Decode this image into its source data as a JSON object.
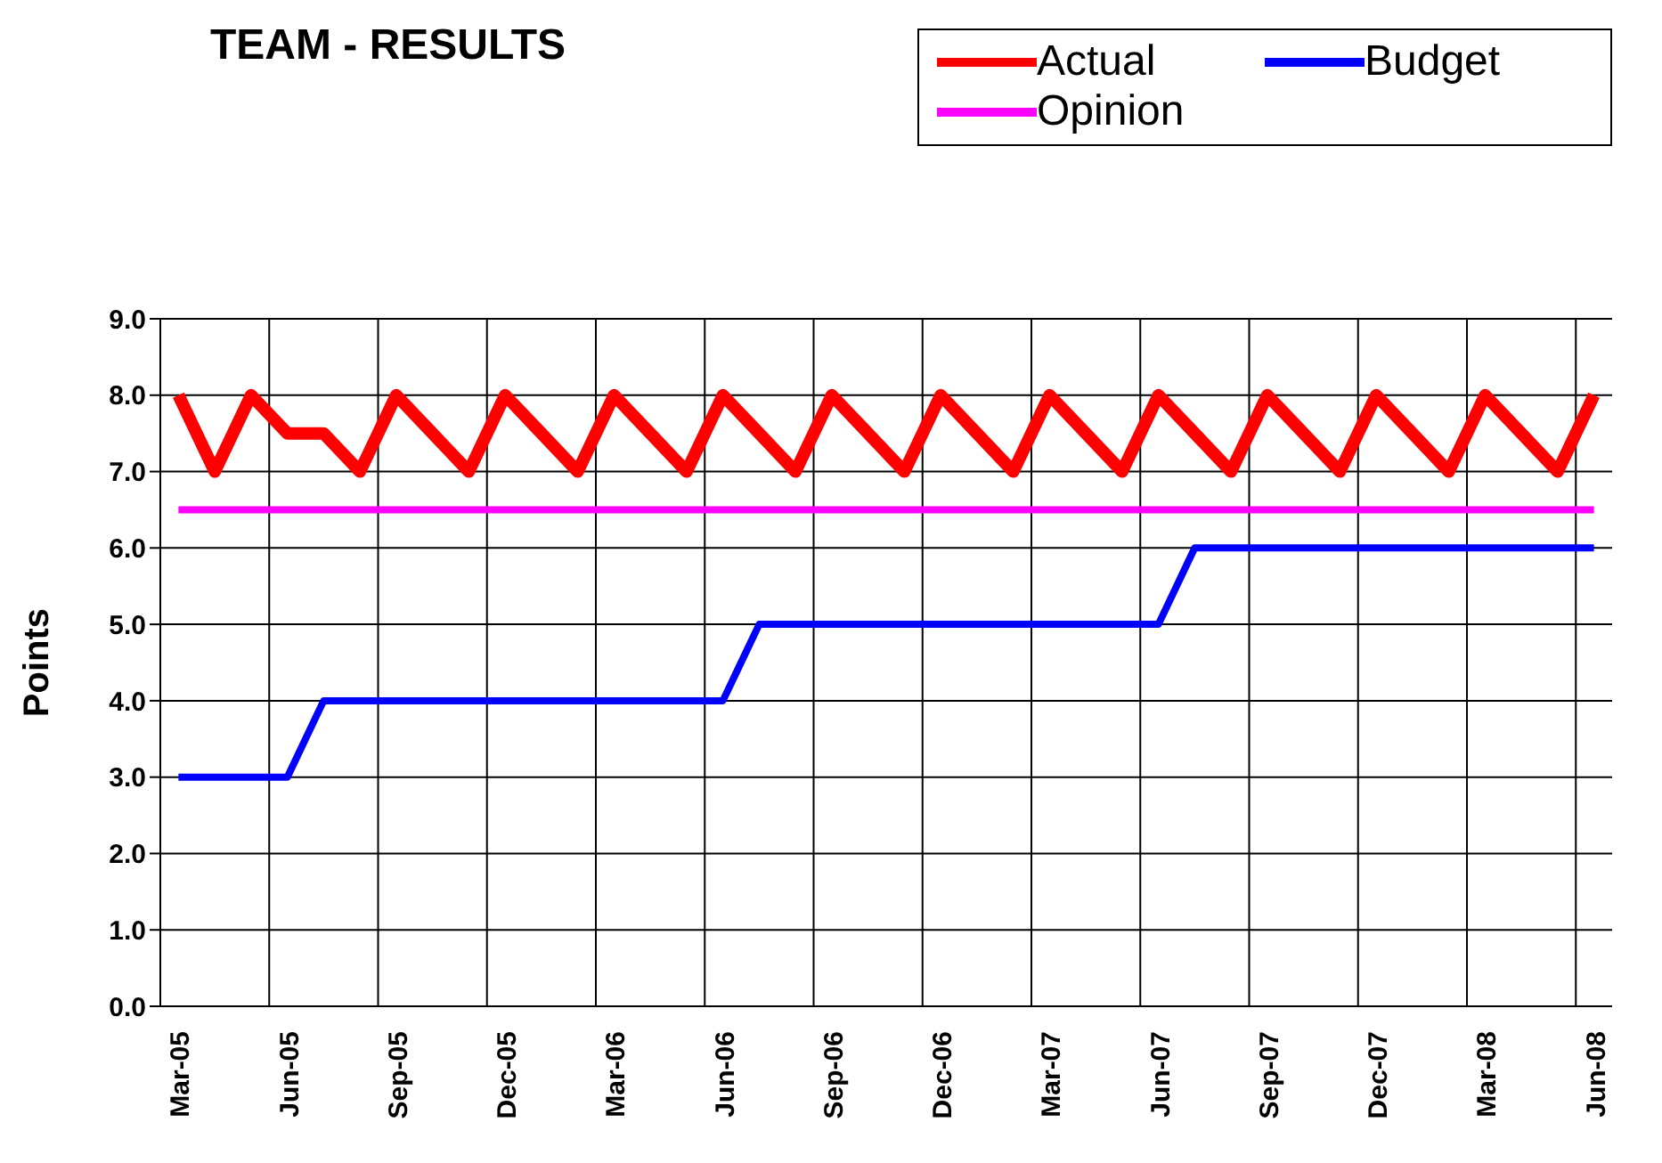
{
  "chart_data": {
    "type": "line",
    "title": "TEAM - RESULTS",
    "ylabel": "Points",
    "categories": [
      "Mar-05",
      null,
      null,
      "Jun-05",
      null,
      null,
      "Sep-05",
      null,
      null,
      "Dec-05",
      null,
      null,
      "Mar-06",
      null,
      null,
      "Jun-06",
      null,
      null,
      "Sep-06",
      null,
      null,
      "Dec-06",
      null,
      null,
      "Mar-07",
      null,
      null,
      "Jun-07",
      null,
      null,
      "Sep-07",
      null,
      null,
      "Dec-07",
      null,
      null,
      "Mar-08",
      null,
      null,
      "Jun-08"
    ],
    "series": [
      {
        "name": "Actual",
        "color": "#ff0000",
        "values": [
          8,
          7,
          8,
          7.5,
          7.5,
          7,
          8,
          7.5,
          7,
          8,
          7.5,
          7,
          8,
          7.5,
          7,
          8,
          7.5,
          7,
          8,
          7.5,
          7,
          8,
          7.5,
          7,
          8,
          7.5,
          7,
          8,
          7.5,
          7,
          8,
          7.5,
          7,
          8,
          7.5,
          7,
          8,
          7.5,
          7,
          8
        ]
      },
      {
        "name": "Opinion",
        "color": "#ff00ff",
        "values": [
          6.5,
          6.5,
          6.5,
          6.5,
          6.5,
          6.5,
          6.5,
          6.5,
          6.5,
          6.5,
          6.5,
          6.5,
          6.5,
          6.5,
          6.5,
          6.5,
          6.5,
          6.5,
          6.5,
          6.5,
          6.5,
          6.5,
          6.5,
          6.5,
          6.5,
          6.5,
          6.5,
          6.5,
          6.5,
          6.5,
          6.5,
          6.5,
          6.5,
          6.5,
          6.5,
          6.5,
          6.5,
          6.5,
          6.5,
          6.5
        ]
      },
      {
        "name": "Budget",
        "color": "#0000ff",
        "values": [
          3,
          3,
          3,
          3,
          4,
          4,
          4,
          4,
          4,
          4,
          4,
          4,
          4,
          4,
          4,
          4,
          5,
          5,
          5,
          5,
          5,
          5,
          5,
          5,
          5,
          5,
          5,
          5,
          6,
          6,
          6,
          6,
          6,
          6,
          6,
          6,
          6,
          6,
          6,
          6
        ]
      }
    ],
    "ylim": [
      0,
      9
    ],
    "yticks": [
      {
        "value": 0,
        "label": "0.0"
      },
      {
        "value": 1,
        "label": "1.0"
      },
      {
        "value": 2,
        "label": "2.0"
      },
      {
        "value": 3,
        "label": "3.0"
      },
      {
        "value": 4,
        "label": "4.0"
      },
      {
        "value": 5,
        "label": "5.0"
      },
      {
        "value": 6,
        "label": "6.0"
      },
      {
        "value": 7,
        "label": "7.0"
      },
      {
        "value": 8,
        "label": "8.0"
      },
      {
        "value": 9,
        "label": "9.0"
      }
    ],
    "grid": true,
    "legend": "top right",
    "marker": "none",
    "line_style": "solid"
  }
}
